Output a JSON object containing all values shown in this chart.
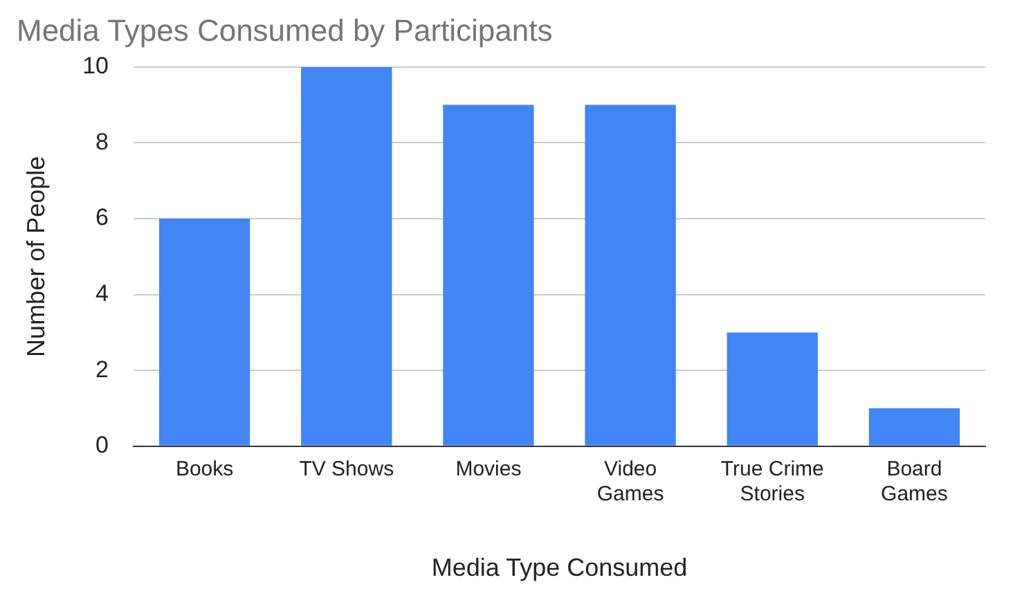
{
  "chart_data": {
    "type": "bar",
    "title": "Media Types Consumed by Participants",
    "xlabel": "Media Type Consumed",
    "ylabel": "Number of People",
    "categories": [
      "Books",
      "TV Shows",
      "Movies",
      "Video Games",
      "True Crime Stories",
      "Board Games"
    ],
    "values": [
      6,
      10,
      9,
      9,
      3,
      1
    ],
    "color": "#4285f4",
    "ylim": [
      0,
      10
    ],
    "yticks": [
      0,
      2,
      4,
      6,
      8,
      10
    ],
    "grid": "y",
    "legend": false
  }
}
